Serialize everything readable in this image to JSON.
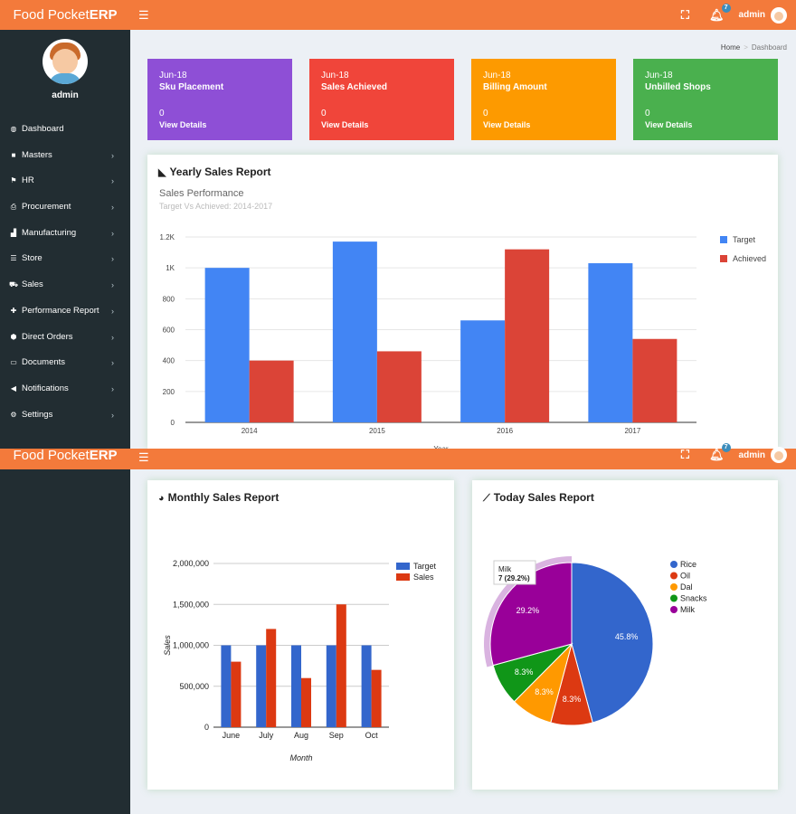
{
  "app": {
    "brand_light": "Food Pocket",
    "brand_bold": "ERP",
    "notification_count": "7",
    "user": "admin"
  },
  "sidebar": {
    "username": "admin",
    "items": [
      {
        "label": "Dashboard",
        "icon": "dashboard-icon",
        "glyph": "◍",
        "chev": ""
      },
      {
        "label": "Masters",
        "icon": "briefcase-icon",
        "glyph": "■",
        "chev": "›"
      },
      {
        "label": "HR",
        "icon": "flag-icon",
        "glyph": "⚑",
        "chev": "›"
      },
      {
        "label": "Procurement",
        "icon": "printer-icon",
        "glyph": "⎙",
        "chev": "›"
      },
      {
        "label": "Manufacturing",
        "icon": "bar-chart-icon",
        "glyph": "▟",
        "chev": "›"
      },
      {
        "label": "Store",
        "icon": "list-icon",
        "glyph": "☰",
        "chev": "›"
      },
      {
        "label": "Sales",
        "icon": "cart-icon",
        "glyph": "⛟",
        "chev": "›"
      },
      {
        "label": "Performance Report",
        "icon": "gift-icon",
        "glyph": "✚",
        "chev": "›"
      },
      {
        "label": "Direct Orders",
        "icon": "cube-icon",
        "glyph": "⬢",
        "chev": "›"
      },
      {
        "label": "Documents",
        "icon": "folder-icon",
        "glyph": "▭",
        "chev": "›"
      },
      {
        "label": "Notifications",
        "icon": "bullhorn-icon",
        "glyph": "◀",
        "chev": "›"
      },
      {
        "label": "Settings",
        "icon": "gear-icon",
        "glyph": "⚙",
        "chev": "›"
      }
    ]
  },
  "breadcrumb": {
    "home": "Home",
    "current": "Dashboard"
  },
  "tiles": [
    {
      "period": "Jun-18",
      "title": "Sku Placement",
      "value": "0",
      "link": "View Details",
      "color": "#8e4fd6"
    },
    {
      "period": "Jun-18",
      "title": "Sales Achieved",
      "value": "0",
      "link": "View Details",
      "color": "#f0453a"
    },
    {
      "period": "Jun-18",
      "title": "Billing Amount",
      "value": "0",
      "link": "View Details",
      "color": "#fd9a00"
    },
    {
      "period": "Jun-18",
      "title": "Unbilled Shops",
      "value": "0",
      "link": "View Details",
      "color": "#4ab04e"
    }
  ],
  "yearly": {
    "title": "Yearly Sales Report",
    "subtitle": "Sales Performance",
    "subtitle2": "Target Vs Achieved: 2014-2017",
    "xlabel_partial": "Year"
  },
  "monthly": {
    "title": "Monthly Sales Report"
  },
  "today": {
    "title": "Today Sales Report",
    "tooltip_label": "Milk",
    "tooltip_value": "7 (29.2%)"
  },
  "chart_data": [
    {
      "type": "bar",
      "title": "Sales Performance",
      "categories": [
        "2014",
        "2015",
        "2016",
        "2017"
      ],
      "series": [
        {
          "name": "Target",
          "values": [
            1000,
            1170,
            660,
            1030
          ],
          "color": "#4285f4"
        },
        {
          "name": "Achieved",
          "values": [
            400,
            460,
            1120,
            540
          ],
          "color": "#db4437"
        }
      ],
      "yticks": [
        "0",
        "200",
        "400",
        "600",
        "800",
        "1K",
        "1.2K"
      ],
      "ylim": [
        0,
        1200
      ],
      "xlabel": "Year",
      "legend": "right"
    },
    {
      "type": "bar",
      "categories": [
        "June",
        "July",
        "Aug",
        "Sep",
        "Oct"
      ],
      "series": [
        {
          "name": "Target",
          "values": [
            1000000,
            1000000,
            1000000,
            1000000,
            1000000
          ],
          "color": "#3366cc"
        },
        {
          "name": "Sales",
          "values": [
            800000,
            1200000,
            600000,
            1500000,
            700000
          ],
          "color": "#dc3912"
        }
      ],
      "yticks": [
        "0",
        "500,000",
        "1,000,000",
        "1,500,000",
        "2,000,000"
      ],
      "ylim": [
        0,
        2000000
      ],
      "xlabel": "Month",
      "ylabel": "Sales",
      "legend": "top-right"
    },
    {
      "type": "pie",
      "slices": [
        {
          "label": "Rice",
          "value": 45.8,
          "text": "45.8%",
          "color": "#3366cc"
        },
        {
          "label": "Oil",
          "value": 8.3,
          "text": "8.3%",
          "color": "#dc3912"
        },
        {
          "label": "Dal",
          "value": 8.3,
          "text": "8.3%",
          "color": "#ff9900"
        },
        {
          "label": "Snacks",
          "value": 8.3,
          "text": "8.3%",
          "color": "#109618"
        },
        {
          "label": "Milk",
          "value": 29.2,
          "text": "29.2%",
          "color": "#990099"
        }
      ],
      "legend": "right"
    }
  ]
}
